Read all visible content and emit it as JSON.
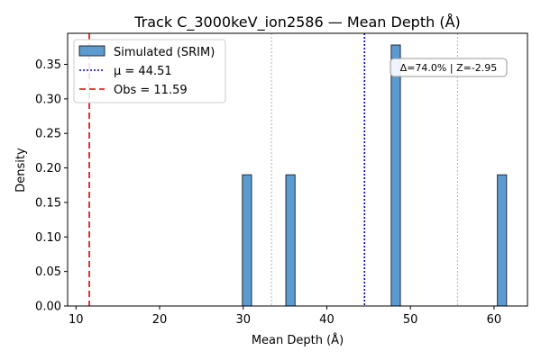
{
  "chart_data": {
    "type": "bar",
    "title": "Track C_3000keV_ion2586 — Mean Depth (Å)",
    "xlabel": "Mean Depth (Å)",
    "ylabel": "Density",
    "xlim": [
      9.0,
      64.0
    ],
    "ylim": [
      0.0,
      0.395
    ],
    "xticks": [
      10,
      20,
      30,
      40,
      50,
      60
    ],
    "yticks": [
      0.0,
      0.05,
      0.1,
      0.15,
      0.2,
      0.25,
      0.3,
      0.35
    ],
    "grid": false,
    "bar_color": "#5b9bd0",
    "bar_edge_color": "#1f2f3f",
    "series": [
      {
        "name": "Simulated (SRIM)",
        "bins": [
          {
            "x0": 29.9,
            "x1": 31.0,
            "value": 0.19
          },
          {
            "x0": 35.1,
            "x1": 36.2,
            "value": 0.19
          },
          {
            "x0": 47.7,
            "x1": 48.8,
            "value": 0.378
          },
          {
            "x0": 60.4,
            "x1": 61.5,
            "value": 0.19
          }
        ]
      }
    ],
    "reference_lines": [
      {
        "label": "μ = 44.51",
        "x": 44.51,
        "color": "#0000cc",
        "style": "dotted",
        "in_legend": true
      },
      {
        "label": "Obs = 11.59",
        "x": 11.59,
        "color": "#e00000",
        "style": "dashed",
        "in_legend": true
      },
      {
        "label": "",
        "x": 33.38,
        "color": "#bbbbbb",
        "style": "dotted",
        "in_legend": false
      },
      {
        "label": "",
        "x": 55.64,
        "color": "#bbbbbb",
        "style": "dotted",
        "in_legend": false
      }
    ],
    "legend_position": "upper-left",
    "annotation": "Δ=74.0% | Z=-2.95"
  }
}
